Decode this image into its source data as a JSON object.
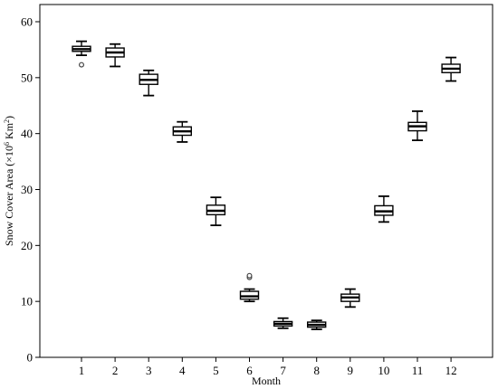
{
  "chart_data": {
    "type": "box",
    "title": "",
    "xlabel": "Month",
    "ylabel_main": "Snow Cover Area (×10",
    "ylabel_exp": "6",
    "ylabel_unit": " Km",
    "ylabel_exp2": "2",
    "ylabel_close": ")",
    "ylim": [
      0,
      60
    ],
    "y_ticks": [
      0,
      10,
      20,
      30,
      40,
      50,
      60
    ],
    "categories": [
      "1",
      "2",
      "3",
      "4",
      "5",
      "6",
      "7",
      "8",
      "9",
      "10",
      "11",
      "12"
    ],
    "grid": false,
    "boxes": [
      {
        "month": "1",
        "min": 54.0,
        "q1": 54.7,
        "median": 55.1,
        "q3": 55.6,
        "max": 56.5,
        "outliers": [
          52.3
        ]
      },
      {
        "month": "2",
        "min": 52.0,
        "q1": 53.7,
        "median": 54.5,
        "q3": 55.3,
        "max": 56.0,
        "outliers": []
      },
      {
        "month": "3",
        "min": 46.8,
        "q1": 48.8,
        "median": 49.6,
        "q3": 50.6,
        "max": 51.3,
        "outliers": []
      },
      {
        "month": "4",
        "min": 38.5,
        "q1": 39.7,
        "median": 40.4,
        "q3": 41.2,
        "max": 42.1,
        "outliers": []
      },
      {
        "month": "5",
        "min": 23.6,
        "q1": 25.5,
        "median": 26.2,
        "q3": 27.2,
        "max": 28.6,
        "outliers": []
      },
      {
        "month": "6",
        "min": 10.0,
        "q1": 10.4,
        "median": 10.9,
        "q3": 11.8,
        "max": 12.2,
        "outliers": [
          14.3,
          14.6
        ]
      },
      {
        "month": "7",
        "min": 5.2,
        "q1": 5.6,
        "median": 6.0,
        "q3": 6.4,
        "max": 7.0,
        "outliers": []
      },
      {
        "month": "8",
        "min": 5.0,
        "q1": 5.4,
        "median": 5.8,
        "q3": 6.3,
        "max": 6.6,
        "outliers": []
      },
      {
        "month": "9",
        "min": 9.0,
        "q1": 10.0,
        "median": 10.7,
        "q3": 11.3,
        "max": 12.2,
        "outliers": []
      },
      {
        "month": "10",
        "min": 24.2,
        "q1": 25.4,
        "median": 26.1,
        "q3": 27.1,
        "max": 28.8,
        "outliers": []
      },
      {
        "month": "11",
        "min": 38.8,
        "q1": 40.5,
        "median": 41.3,
        "q3": 42.0,
        "max": 44.0,
        "outliers": []
      },
      {
        "month": "12",
        "min": 49.4,
        "q1": 50.9,
        "median": 51.6,
        "q3": 52.4,
        "max": 53.6,
        "outliers": []
      }
    ]
  }
}
